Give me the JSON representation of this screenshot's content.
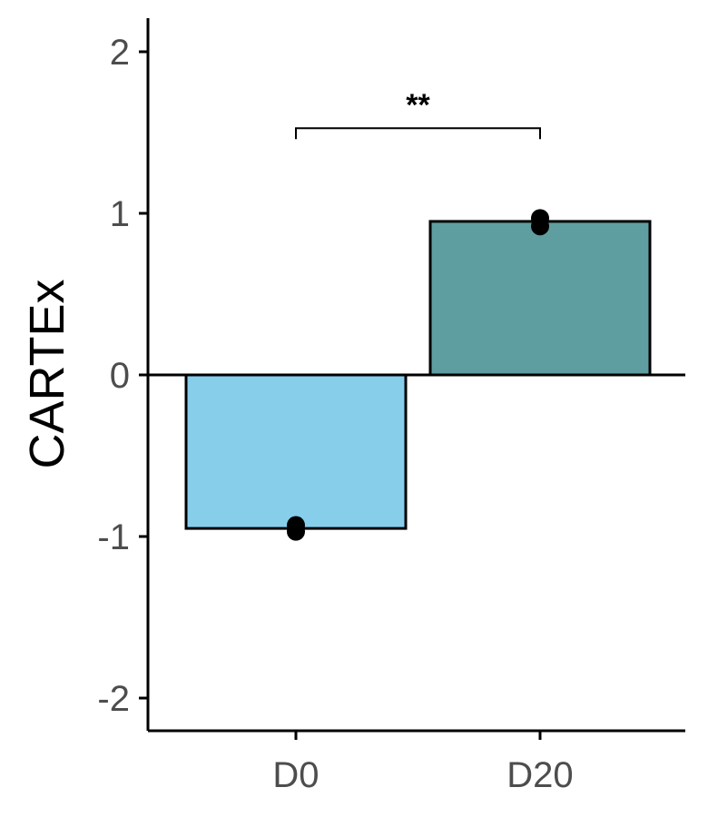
{
  "chart_data": {
    "type": "bar",
    "categories": [
      "D0",
      "D20"
    ],
    "values": [
      -0.95,
      0.95
    ],
    "points": [
      {
        "category": "D0",
        "y": [
          -0.93,
          -0.97
        ]
      },
      {
        "category": "D20",
        "y": [
          0.97,
          0.92
        ]
      }
    ],
    "ylabel": "CARTEx",
    "xlabel": "",
    "ylim": [
      -2.2,
      2.2
    ],
    "yticks": [
      2,
      1,
      0,
      -1,
      -2
    ],
    "ytick_labels": [
      "2",
      "1",
      "0",
      "-1",
      "-2"
    ],
    "grid": false,
    "legend": "none",
    "colors": {
      "D0": "#87ceeb",
      "D20": "#5f9ea0"
    },
    "significance": {
      "from": "D0",
      "to": "D20",
      "y": 1.6,
      "label": "**"
    }
  }
}
